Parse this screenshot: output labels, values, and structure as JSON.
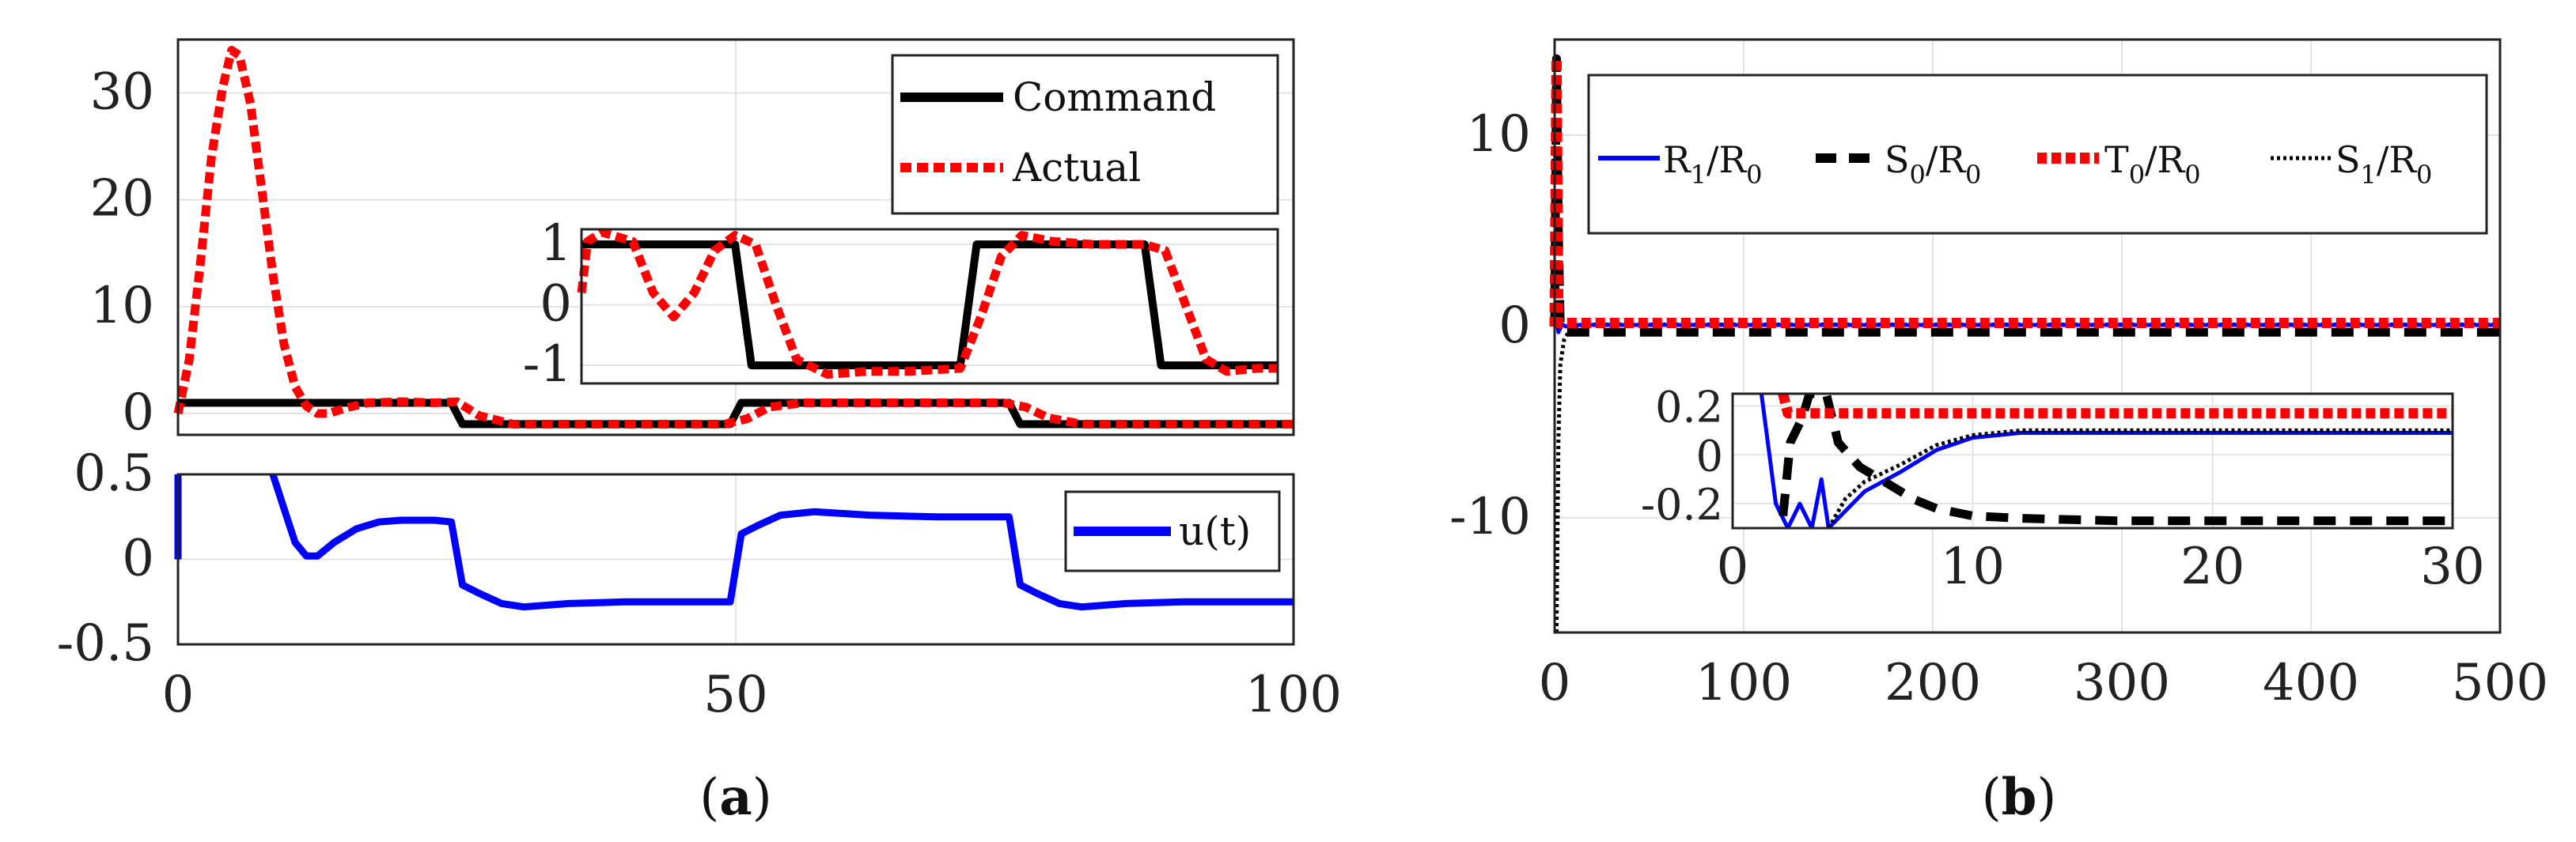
{
  "colors": {
    "command": "#000000",
    "actual": "#ff0000",
    "u": "#0000ff",
    "r1": "#0000ff",
    "s0": "#000000",
    "t0": "#ff0000",
    "s1": "#000000"
  },
  "panels": {
    "a": {
      "label_paren_open": "(",
      "label": "a",
      "label_paren_close": ")"
    },
    "b": {
      "label_paren_open": "(",
      "label": "b",
      "label_paren_close": ")"
    }
  },
  "chart_data": [
    {
      "id": "a_top",
      "type": "line",
      "title": "",
      "xlim": [
        0,
        100
      ],
      "ylim": [
        -2,
        35
      ],
      "yticks": [
        "0",
        "10",
        "20",
        "30"
      ],
      "legend": [
        "Command",
        "Actual"
      ],
      "series": [
        {
          "name": "Command",
          "x": [
            0,
            24.5,
            25.5,
            49.5,
            50.5,
            74.5,
            75.5,
            100
          ],
          "y": [
            1,
            1,
            -1,
            -1,
            1,
            1,
            -1,
            -1
          ]
        },
        {
          "name": "Actual",
          "x": [
            0,
            1,
            2,
            3,
            4,
            4.8,
            5.5,
            6.5,
            7.5,
            8.5,
            9.5,
            10.5,
            11.5,
            12.5,
            13.5,
            15,
            17,
            20,
            23,
            25,
            27,
            30,
            35,
            40,
            45,
            49,
            51,
            53,
            56,
            60,
            65,
            70,
            74,
            76,
            78,
            81,
            85,
            90,
            95,
            100
          ],
          "y": [
            0,
            5,
            14,
            24,
            30.5,
            34,
            33.5,
            29,
            21,
            13,
            6.5,
            2.5,
            0.7,
            0.0,
            0.0,
            0.5,
            1.0,
            1.1,
            1.0,
            1.1,
            -0.2,
            -1.0,
            -1.0,
            -1.0,
            -1.0,
            -1.0,
            -0.5,
            0.6,
            1.0,
            1.0,
            1.0,
            1.0,
            1.0,
            0.6,
            -0.4,
            -1.0,
            -1.0,
            -1.0,
            -1.0,
            -1.0
          ]
        }
      ],
      "inset": {
        "xlim": [
          6,
          40
        ],
        "ylim": [
          -1.3,
          1.25
        ],
        "yticks": [
          "1",
          "0",
          "-1"
        ],
        "series": [
          {
            "name": "Command",
            "x": [
              6,
              13.5,
              14.3,
              24.5,
              25.3,
              33.5,
              34.3,
              40
            ],
            "y": [
              1,
              1,
              -1,
              -1,
              1,
              1,
              -1,
              -1
            ]
          },
          {
            "name": "Actual",
            "x": [
              6,
              6.3,
              7,
              8.5,
              9.5,
              10.5,
              11.5,
              12.5,
              13.5,
              14.5,
              15.5,
              16.5,
              18,
              20,
              22,
              24.5,
              25.5,
              26.5,
              27.5,
              29,
              31,
              33.5,
              34.5,
              35.5,
              36.5,
              37.5,
              39,
              40
            ],
            "y": [
              0.2,
              1.05,
              1.2,
              1.05,
              0.2,
              -0.2,
              0.2,
              0.9,
              1.15,
              1.0,
              0.0,
              -0.9,
              -1.15,
              -1.1,
              -1.1,
              -1.05,
              -0.2,
              0.8,
              1.15,
              1.05,
              1.0,
              1.0,
              0.9,
              0.0,
              -0.9,
              -1.1,
              -1.05,
              -1.05
            ]
          }
        ]
      }
    },
    {
      "id": "a_bottom",
      "type": "line",
      "title": "",
      "xlim": [
        0,
        100
      ],
      "ylim": [
        -0.5,
        0.5
      ],
      "xticks": [
        "0",
        "50",
        "100"
      ],
      "yticks": [
        "0.5",
        "0",
        "-0.5"
      ],
      "legend": [
        "u(t)"
      ],
      "series": [
        {
          "name": "u(t)",
          "x": [
            8.5,
            9.5,
            10.5,
            11.5,
            12.5,
            14,
            16,
            18,
            20,
            23,
            24.5,
            25.5,
            27,
            29,
            31,
            35,
            40,
            45,
            49.5,
            50.5,
            52,
            54,
            57,
            62,
            68,
            72,
            74.5,
            75.5,
            77,
            79,
            81,
            85,
            90,
            95,
            100
          ],
          "y": [
            0.5,
            0.3,
            0.1,
            0.02,
            0.02,
            0.1,
            0.18,
            0.22,
            0.23,
            0.23,
            0.22,
            -0.15,
            -0.2,
            -0.26,
            -0.28,
            -0.26,
            -0.25,
            -0.25,
            -0.25,
            0.15,
            0.2,
            0.26,
            0.28,
            0.26,
            0.25,
            0.25,
            0.25,
            -0.15,
            -0.2,
            -0.26,
            -0.28,
            -0.26,
            -0.25,
            -0.25,
            -0.25
          ]
        }
      ],
      "extra_segment": {
        "x": [
          0,
          0
        ],
        "y": [
          0,
          0.5
        ]
      }
    },
    {
      "id": "b_main",
      "type": "line",
      "title": "",
      "xlim": [
        0,
        500
      ],
      "ylim": [
        -16,
        15
      ],
      "xticks": [
        "0",
        "100",
        "200",
        "300",
        "400",
        "500"
      ],
      "yticks": [
        "10",
        "0",
        "-10"
      ],
      "legend": [
        {
          "main": "R",
          "sub": "1",
          "sep": "/",
          "main2": "R",
          "sub2": "0"
        },
        {
          "main": "S",
          "sub": "0",
          "sep": "/",
          "main2": "R",
          "sub2": "0"
        },
        {
          "main": "T",
          "sub": "0",
          "sep": "/",
          "main2": "R",
          "sub2": "0"
        },
        {
          "main": "S",
          "sub": "1",
          "sep": "/",
          "main2": "R",
          "sub2": "0"
        }
      ],
      "series": [
        {
          "name": "R1/R0",
          "x": [
            0,
            1,
            2,
            4,
            6,
            10,
            500
          ],
          "y": [
            0,
            0.5,
            -0.3,
            0.1,
            0,
            0.08,
            0.08
          ]
        },
        {
          "name": "S0/R0",
          "x": [
            0,
            1,
            2,
            3,
            5,
            8,
            500
          ],
          "y": [
            0,
            14,
            5,
            0,
            -0.3,
            -0.3,
            -0.3
          ]
        },
        {
          "name": "T0/R0",
          "x": [
            0,
            1,
            2,
            4,
            500
          ],
          "y": [
            0,
            14,
            0.18,
            0.18,
            0.18
          ]
        },
        {
          "name": "S1/R0",
          "x": [
            1,
            2,
            3,
            5,
            8,
            12,
            20,
            500
          ],
          "y": [
            -16,
            -6,
            -2,
            -0.7,
            -0.2,
            0.05,
            0.1,
            0.1
          ]
        }
      ],
      "inset": {
        "xlim": [
          0,
          30
        ],
        "ylim": [
          -0.3,
          0.25
        ],
        "xticks": [
          "0",
          "10",
          "20",
          "30"
        ],
        "yticks": [
          "0.2",
          "0",
          "-0.2"
        ],
        "series": [
          {
            "name": "R1/R0",
            "x": [
              1.2,
              1.8,
              2.3,
              2.8,
              3.3,
              3.7,
              4.0,
              5.5,
              7,
              8.5,
              10,
              12,
              15,
              20,
              30
            ],
            "y": [
              0.25,
              -0.2,
              -0.3,
              -0.2,
              -0.3,
              -0.1,
              -0.3,
              -0.15,
              -0.07,
              0.02,
              0.07,
              0.09,
              0.09,
              0.09,
              0.09
            ]
          },
          {
            "name": "S0/R0",
            "x": [
              2.1,
              2.4,
              2.9,
              3.2,
              3.5,
              3.9,
              4.4,
              5.3,
              6.5,
              7.5,
              8.5,
              10,
              12,
              16,
              22,
              30
            ],
            "y": [
              -0.25,
              0.05,
              0.15,
              0.25,
              0.25,
              0.25,
              0.05,
              -0.05,
              -0.12,
              -0.18,
              -0.22,
              -0.25,
              -0.26,
              -0.27,
              -0.27,
              -0.27
            ]
          },
          {
            "name": "T0/R0",
            "x": [
              2.1,
              2.3,
              3,
              30
            ],
            "y": [
              0.25,
              0.17,
              0.17,
              0.17
            ]
          },
          {
            "name": "S1/R0",
            "x": [
              4.0,
              4.7,
              5.5,
              7,
              8.5,
              10,
              12,
              15,
              20,
              30
            ],
            "y": [
              -0.3,
              -0.18,
              -0.11,
              -0.04,
              0.04,
              0.08,
              0.1,
              0.1,
              0.1,
              0.1
            ]
          }
        ]
      }
    }
  ]
}
